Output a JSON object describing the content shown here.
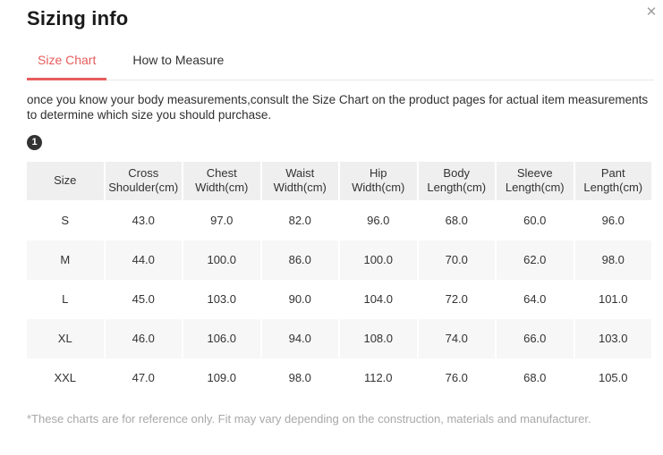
{
  "modal": {
    "title": "Sizing info",
    "close_glyph": "✕"
  },
  "tabs": [
    {
      "label": "Size Chart",
      "active": true
    },
    {
      "label": "How to Measure",
      "active": false
    }
  ],
  "description": "once you know your body measurements,consult the Size Chart on the product pages for actual item measurements to determine which size you should purchase.",
  "badge": "1",
  "table": {
    "headers": [
      "Size",
      "Cross Shoulder(cm)",
      "Chest Width(cm)",
      "Waist Width(cm)",
      "Hip Width(cm)",
      "Body Length(cm)",
      "Sleeve Length(cm)",
      "Pant Length(cm)"
    ],
    "rows": [
      {
        "size": "S",
        "values": [
          "43.0",
          "97.0",
          "82.0",
          "96.0",
          "68.0",
          "60.0",
          "96.0"
        ]
      },
      {
        "size": "M",
        "values": [
          "44.0",
          "100.0",
          "86.0",
          "100.0",
          "70.0",
          "62.0",
          "98.0"
        ]
      },
      {
        "size": "L",
        "values": [
          "45.0",
          "103.0",
          "90.0",
          "104.0",
          "72.0",
          "64.0",
          "101.0"
        ]
      },
      {
        "size": "XL",
        "values": [
          "46.0",
          "106.0",
          "94.0",
          "108.0",
          "74.0",
          "66.0",
          "103.0"
        ]
      },
      {
        "size": "XXL",
        "values": [
          "47.0",
          "109.0",
          "98.0",
          "112.0",
          "76.0",
          "68.0",
          "105.0"
        ]
      }
    ]
  },
  "footnote": "*These charts are for reference only. Fit may vary depending on the construction, materials and manufacturer.",
  "colors": {
    "accent": "#e85c5c",
    "header_bg": "#efefef",
    "stripe_bg": "#f7f7f7",
    "muted_text": "#a8a8a8"
  }
}
